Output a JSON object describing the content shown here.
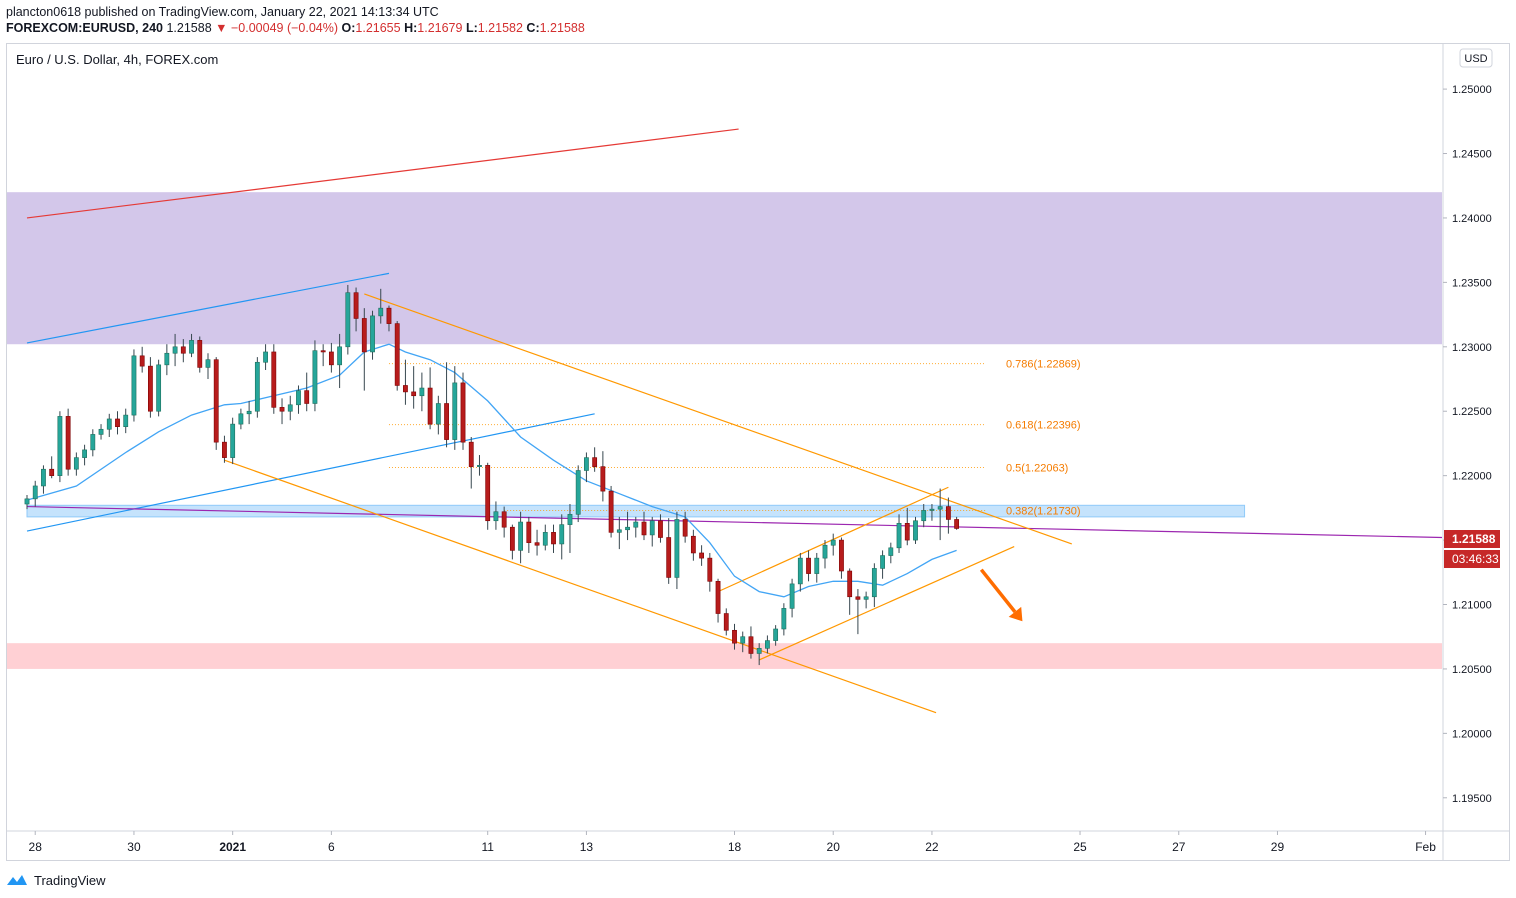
{
  "header": {
    "publisher_line": "plancton0618 published on TradingView.com, January 22, 2021 14:13:34 UTC",
    "symbol": "FOREXCOM:EURUSD, 240",
    "last": "1.21588",
    "change": "▼ −0.00049 (−0.04%)",
    "o_label": "O:",
    "o_value": "1.21655",
    "h_label": "H:",
    "h_value": "1.21679",
    "l_label": "L:",
    "l_value": "1.21582",
    "c_label": "C:",
    "c_value": "1.21588"
  },
  "chart_title": "Euro / U.S. Dollar, 4h, FOREX.com",
  "currency_badge": "USD",
  "price_tag": "1.21588",
  "countdown_tag": "03:46:33",
  "footer": {
    "brand": "TradingView"
  },
  "colors": {
    "bull": "#26a69a",
    "bull_body": "#1f6e5c",
    "bear": "#b71c1c",
    "ma": "#42a5f5",
    "channel": "#ff9800",
    "resistance_zone": "#d1c4e9",
    "support_zone": "#ffcdd2",
    "red_trend": "#e53935",
    "blue_trend": "#2196f3",
    "purple_line": "#9c27b0",
    "tag_red": "#c62828"
  },
  "chart_data": {
    "type": "candlestick",
    "title": "Euro / U.S. Dollar, 4h, FOREX.com",
    "ylim": [
      1.1925,
      1.2535
    ],
    "y_ticks": [
      "1.25000",
      "1.24500",
      "1.24000",
      "1.23500",
      "1.23000",
      "1.22500",
      "1.22000",
      "1.21500",
      "1.21000",
      "1.20500",
      "1.20000",
      "1.19500"
    ],
    "x_ticks": [
      {
        "label": "28",
        "t": 1
      },
      {
        "label": "30",
        "t": 13
      },
      {
        "label": "2021",
        "t": 25
      },
      {
        "label": "6",
        "t": 37
      },
      {
        "label": "11",
        "t": 56
      },
      {
        "label": "13",
        "t": 68
      },
      {
        "label": "18",
        "t": 86
      },
      {
        "label": "20",
        "t": 98
      },
      {
        "label": "22",
        "t": 110
      },
      {
        "label": "25",
        "t": 128
      },
      {
        "label": "27",
        "t": 140
      },
      {
        "label": "29",
        "t": 152
      },
      {
        "label": "Feb",
        "t": 170
      }
    ],
    "x_range": [
      0,
      172
    ],
    "ohlc": [
      [
        1.2178,
        1.2185,
        1.2174,
        1.2182
      ],
      [
        1.2182,
        1.2196,
        1.2176,
        1.2192
      ],
      [
        1.2192,
        1.2208,
        1.2186,
        1.2205
      ],
      [
        1.2205,
        1.2215,
        1.2198,
        1.22
      ],
      [
        1.22,
        1.225,
        1.2195,
        1.2246
      ],
      [
        1.2246,
        1.2252,
        1.22,
        1.2205
      ],
      [
        1.2205,
        1.2218,
        1.22,
        1.2214
      ],
      [
        1.2214,
        1.2224,
        1.2208,
        1.222
      ],
      [
        1.222,
        1.2236,
        1.2215,
        1.2232
      ],
      [
        1.2232,
        1.224,
        1.2228,
        1.2236
      ],
      [
        1.2236,
        1.2248,
        1.223,
        1.2244
      ],
      [
        1.2244,
        1.225,
        1.2232,
        1.2238
      ],
      [
        1.2238,
        1.2252,
        1.2233,
        1.2247
      ],
      [
        1.2247,
        1.2298,
        1.2242,
        1.2293
      ],
      [
        1.2293,
        1.23,
        1.228,
        1.2285
      ],
      [
        1.2285,
        1.2292,
        1.2245,
        1.225
      ],
      [
        1.225,
        1.229,
        1.2246,
        1.2286
      ],
      [
        1.2286,
        1.2302,
        1.2278,
        1.2295
      ],
      [
        1.2295,
        1.231,
        1.2285,
        1.23
      ],
      [
        1.23,
        1.2306,
        1.2288,
        1.2295
      ],
      [
        1.2295,
        1.231,
        1.2292,
        1.2305
      ],
      [
        1.2305,
        1.2308,
        1.228,
        1.2284
      ],
      [
        1.2284,
        1.2295,
        1.2275,
        1.229
      ],
      [
        1.229,
        1.2292,
        1.222,
        1.2226
      ],
      [
        1.2226,
        1.2231,
        1.221,
        1.2214
      ],
      [
        1.2214,
        1.2245,
        1.2209,
        1.224
      ],
      [
        1.224,
        1.2252,
        1.2236,
        1.2248
      ],
      [
        1.2248,
        1.2258,
        1.224,
        1.225
      ],
      [
        1.225,
        1.2292,
        1.2245,
        1.2288
      ],
      [
        1.2288,
        1.2302,
        1.2282,
        1.2296
      ],
      [
        1.2296,
        1.2302,
        1.2248,
        1.2253
      ],
      [
        1.2253,
        1.226,
        1.224,
        1.225
      ],
      [
        1.225,
        1.2262,
        1.2243,
        1.2255
      ],
      [
        1.2255,
        1.227,
        1.2248,
        1.2266
      ],
      [
        1.2266,
        1.228,
        1.225,
        1.2256
      ],
      [
        1.2256,
        1.2305,
        1.225,
        1.2297
      ],
      [
        1.2297,
        1.2302,
        1.2285,
        1.2296
      ],
      [
        1.2296,
        1.2303,
        1.228,
        1.2286
      ],
      [
        1.2286,
        1.231,
        1.2268,
        1.23
      ],
      [
        1.23,
        1.2348,
        1.2294,
        1.2342
      ],
      [
        1.2342,
        1.2346,
        1.2312,
        1.2322
      ],
      [
        1.2322,
        1.233,
        1.2266,
        1.2296
      ],
      [
        1.2296,
        1.2328,
        1.229,
        1.2324
      ],
      [
        1.2324,
        1.2345,
        1.2318,
        1.233
      ],
      [
        1.233,
        1.2332,
        1.2312,
        1.2318
      ],
      [
        1.2318,
        1.232,
        1.2266,
        1.227
      ],
      [
        1.227,
        1.229,
        1.2255,
        1.2265
      ],
      [
        1.2265,
        1.2285,
        1.2252,
        1.2262
      ],
      [
        1.2262,
        1.228,
        1.225,
        1.2268
      ],
      [
        1.2268,
        1.2284,
        1.2236,
        1.224
      ],
      [
        1.224,
        1.2262,
        1.2232,
        1.2256
      ],
      [
        1.2256,
        1.2288,
        1.2222,
        1.2228
      ],
      [
        1.2228,
        1.2285,
        1.222,
        1.2272
      ],
      [
        1.2272,
        1.228,
        1.222,
        1.2226
      ],
      [
        1.2226,
        1.223,
        1.219,
        1.2207
      ],
      [
        1.2207,
        1.2216,
        1.22,
        1.2208
      ],
      [
        1.2208,
        1.221,
        1.2158,
        1.2165
      ],
      [
        1.2165,
        1.218,
        1.2158,
        1.2172
      ],
      [
        1.2172,
        1.2176,
        1.2152,
        1.216
      ],
      [
        1.216,
        1.2162,
        1.2135,
        1.2142
      ],
      [
        1.2142,
        1.2172,
        1.2132,
        1.2164
      ],
      [
        1.2164,
        1.2168,
        1.214,
        1.2148
      ],
      [
        1.2148,
        1.2158,
        1.2138,
        1.2146
      ],
      [
        1.2146,
        1.2162,
        1.2142,
        1.2156
      ],
      [
        1.2156,
        1.2162,
        1.214,
        1.2147
      ],
      [
        1.2147,
        1.217,
        1.2135,
        1.2162
      ],
      [
        1.2162,
        1.2178,
        1.214,
        1.217
      ],
      [
        1.217,
        1.2208,
        1.2164,
        1.2204
      ],
      [
        1.2204,
        1.2218,
        1.2195,
        1.2214
      ],
      [
        1.2214,
        1.2222,
        1.2203,
        1.2207
      ],
      [
        1.2207,
        1.2219,
        1.218,
        1.2188
      ],
      [
        1.2188,
        1.2192,
        1.2152,
        1.2156
      ],
      [
        1.2156,
        1.2168,
        1.2143,
        1.2158
      ],
      [
        1.2158,
        1.2172,
        1.215,
        1.216
      ],
      [
        1.216,
        1.2168,
        1.2152,
        1.2164
      ],
      [
        1.2164,
        1.2172,
        1.215,
        1.2154
      ],
      [
        1.2154,
        1.2168,
        1.2145,
        1.2165
      ],
      [
        1.2165,
        1.217,
        1.2148,
        1.2152
      ],
      [
        1.2152,
        1.2167,
        1.2116,
        1.2121
      ],
      [
        1.2121,
        1.2172,
        1.2112,
        1.2166
      ],
      [
        1.2166,
        1.2172,
        1.2148,
        1.2153
      ],
      [
        1.2153,
        1.2158,
        1.2134,
        1.214
      ],
      [
        1.214,
        1.2146,
        1.213,
        1.2136
      ],
      [
        1.2136,
        1.214,
        1.211,
        1.2118
      ],
      [
        1.2118,
        1.212,
        1.2086,
        1.2093
      ],
      [
        1.2093,
        1.2097,
        1.2076,
        1.208
      ],
      [
        1.208,
        1.2085,
        1.2065,
        1.207
      ],
      [
        1.207,
        1.2079,
        1.2063,
        1.2075
      ],
      [
        1.2075,
        1.2083,
        1.2058,
        1.2062
      ],
      [
        1.2062,
        1.207,
        1.2053,
        1.2066
      ],
      [
        1.2066,
        1.2076,
        1.2062,
        1.2072
      ],
      [
        1.2072,
        1.2084,
        1.2068,
        1.2081
      ],
      [
        1.2081,
        1.2101,
        1.2076,
        1.2097
      ],
      [
        1.2097,
        1.212,
        1.209,
        1.2116
      ],
      [
        1.2116,
        1.214,
        1.211,
        1.2136
      ],
      [
        1.2136,
        1.2142,
        1.2118,
        1.2124
      ],
      [
        1.2124,
        1.214,
        1.2117,
        1.2136
      ],
      [
        1.2136,
        1.215,
        1.2128,
        1.2146
      ],
      [
        1.2146,
        1.2155,
        1.2138,
        1.215
      ],
      [
        1.215,
        1.2152,
        1.212,
        1.2126
      ],
      [
        1.2126,
        1.2128,
        1.2092,
        1.2106
      ],
      [
        1.2106,
        1.2112,
        1.2077,
        1.2104
      ],
      [
        1.2104,
        1.211,
        1.2097,
        1.2106
      ],
      [
        1.2106,
        1.2132,
        1.2098,
        1.2128
      ],
      [
        1.2128,
        1.2142,
        1.212,
        1.2138
      ],
      [
        1.2138,
        1.2148,
        1.2132,
        1.2144
      ],
      [
        1.2144,
        1.217,
        1.214,
        1.2163
      ],
      [
        1.2163,
        1.2175,
        1.2146,
        1.215
      ],
      [
        1.215,
        1.2168,
        1.2147,
        1.2165
      ],
      [
        1.2165,
        1.2178,
        1.216,
        1.2173
      ],
      [
        1.2173,
        1.2178,
        1.2165,
        1.2174
      ],
      [
        1.2174,
        1.219,
        1.215,
        1.2176
      ],
      [
        1.2176,
        1.2183,
        1.2155,
        1.2166
      ],
      [
        1.2166,
        1.2168,
        1.2158,
        1.2159
      ]
    ],
    "moving_average": [
      [
        0,
        1.2181
      ],
      [
        6,
        1.2192
      ],
      [
        12,
        1.2218
      ],
      [
        16,
        1.2234
      ],
      [
        20,
        1.2247
      ],
      [
        24,
        1.2255
      ],
      [
        26,
        1.2256
      ],
      [
        30,
        1.2262
      ],
      [
        34,
        1.2268
      ],
      [
        38,
        1.2278
      ],
      [
        41,
        1.2296
      ],
      [
        44,
        1.2302
      ],
      [
        46,
        1.2296
      ],
      [
        49,
        1.229
      ],
      [
        52,
        1.228
      ],
      [
        56,
        1.2258
      ],
      [
        60,
        1.223
      ],
      [
        64,
        1.2212
      ],
      [
        68,
        1.2196
      ],
      [
        72,
        1.2186
      ],
      [
        76,
        1.2176
      ],
      [
        80,
        1.2168
      ],
      [
        83,
        1.2148
      ],
      [
        86,
        1.2122
      ],
      [
        89,
        1.211
      ],
      [
        92,
        1.2106
      ],
      [
        95,
        1.2114
      ],
      [
        98,
        1.2118
      ],
      [
        101,
        1.2118
      ],
      [
        104,
        1.2115
      ],
      [
        107,
        1.2124
      ],
      [
        110,
        1.2135
      ],
      [
        113,
        1.2142
      ]
    ],
    "fibonacci": [
      {
        "label": "0.786(1.22869)",
        "value": 1.22869,
        "t_start": 44
      },
      {
        "label": "0.618(1.22396)",
        "value": 1.22396,
        "t_start": 44
      },
      {
        "label": "0.5(1.22063)",
        "value": 1.22063,
        "t_start": 44
      },
      {
        "label": "0.382(1.21730)",
        "value": 1.2173,
        "t_start": 58
      }
    ],
    "zones": [
      {
        "name": "resistance",
        "y1": 1.2302,
        "y2": 1.242
      },
      {
        "name": "support",
        "y1": 1.205,
        "y2": 1.207
      },
      {
        "name": "pivot",
        "y1": 1.2168,
        "y2": 1.2177,
        "t_start": 0,
        "t_end": 148
      }
    ],
    "trendlines": [
      {
        "name": "red-trend",
        "p1": [
          0,
          1.24
        ],
        "p2": [
          86.5,
          1.2469
        ]
      },
      {
        "name": "blue-trend-upper",
        "p1": [
          0,
          1.2303
        ],
        "p2": [
          44,
          1.2357
        ]
      },
      {
        "name": "blue-trend-lower",
        "p1": [
          0,
          1.2157
        ],
        "p2": [
          69,
          1.2248
        ]
      },
      {
        "name": "purple-line",
        "p1": [
          0,
          1.2176
        ],
        "p2": [
          172,
          1.2152
        ]
      },
      {
        "name": "channel-upper",
        "p1": [
          41,
          1.2341
        ],
        "p2": [
          127,
          1.2147
        ]
      },
      {
        "name": "channel-lower",
        "p1": [
          24,
          1.2212
        ],
        "p2": [
          110.5,
          1.2016
        ]
      },
      {
        "name": "rising-upper",
        "p1": [
          84,
          1.211
        ],
        "p2": [
          112,
          1.2191
        ]
      },
      {
        "name": "rising-lower",
        "p1": [
          89,
          1.2057
        ],
        "p2": [
          120,
          1.2145
        ]
      }
    ],
    "arrow": {
      "from": [
        116,
        1.2127
      ],
      "to": [
        121,
        1.2087
      ]
    }
  }
}
